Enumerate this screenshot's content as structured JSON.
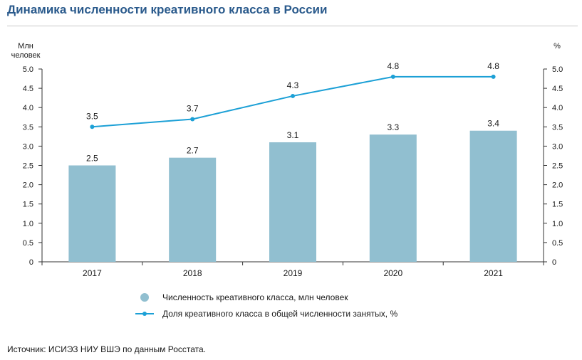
{
  "title": "Динамика численности креативного класса в России",
  "source": "Источник: ИСИЭЗ НИУ ВШЭ по данным Росстата.",
  "colors": {
    "bar": "#91bfd0",
    "line": "#1ca0d6",
    "axis": "#333333",
    "title": "#2a5a8c"
  },
  "chart_data": {
    "type": "bar+line",
    "categories": [
      "2017",
      "2018",
      "2019",
      "2020",
      "2021"
    ],
    "series": [
      {
        "name": "Численность креативного класса, млн человек",
        "type": "bar",
        "axis": "left",
        "values": [
          2.5,
          2.7,
          3.1,
          3.3,
          3.4
        ]
      },
      {
        "name": "Доля креативного класса в общей численности занятых, %",
        "type": "line",
        "axis": "right",
        "values": [
          3.5,
          3.7,
          4.3,
          4.8,
          4.8
        ]
      }
    ],
    "y_left": {
      "label_line1": "Млн",
      "label_line2": "человек",
      "min": 0,
      "max": 5.0,
      "ticks": [
        "0",
        "0.5",
        "1.0",
        "1.5",
        "2.0",
        "2.5",
        "3.0",
        "3.5",
        "4.0",
        "4.5",
        "5.0"
      ]
    },
    "y_right": {
      "label": "%",
      "min": 0,
      "max": 5.0,
      "ticks": [
        "0",
        "0.5",
        "1.0",
        "1.5",
        "2.0",
        "2.5",
        "3.0",
        "3.5",
        "4.0",
        "4.5",
        "5.0"
      ]
    },
    "bar_labels": [
      "2.5",
      "2.7",
      "3.1",
      "3.3",
      "3.4"
    ],
    "line_labels": [
      "3.5",
      "3.7",
      "4.3",
      "4.8",
      "4.8"
    ],
    "legend_position": "bottom"
  }
}
